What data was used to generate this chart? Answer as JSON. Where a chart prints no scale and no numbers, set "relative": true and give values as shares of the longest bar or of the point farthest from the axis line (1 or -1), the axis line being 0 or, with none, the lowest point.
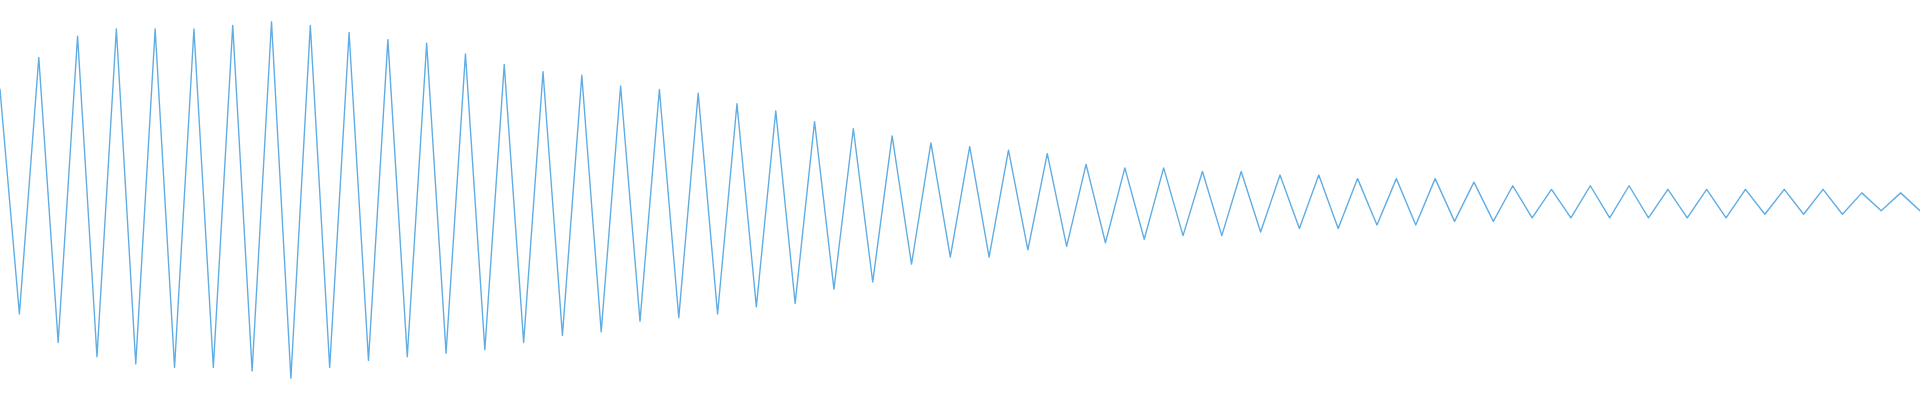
{
  "chart_data": {
    "type": "line",
    "relative": true,
    "color": "#5fade4",
    "categories": [
      null,
      null,
      null,
      null,
      null,
      null,
      null,
      null,
      null,
      null,
      null,
      null,
      null,
      null,
      null,
      null,
      null,
      null,
      null,
      null,
      null,
      null,
      null,
      null,
      null,
      null,
      null,
      null,
      null,
      null,
      null,
      null,
      null,
      null,
      null,
      null,
      null,
      null,
      null,
      null,
      null,
      null,
      null,
      null,
      null,
      null,
      null,
      null,
      null,
      null,
      null,
      null,
      null,
      null,
      null,
      null,
      null,
      null,
      null,
      null,
      null,
      null,
      null,
      null,
      null,
      null,
      null,
      null,
      null,
      null,
      null,
      null,
      null,
      null,
      null,
      null,
      null,
      null,
      null,
      null,
      null,
      null,
      null,
      null,
      null,
      null,
      null,
      null,
      null,
      null,
      null,
      null,
      null,
      null,
      null,
      null,
      null,
      null,
      null,
      null
    ],
    "values": [
      0.81,
      0.18,
      0.9,
      0.1,
      0.96,
      0.06,
      0.98,
      0.04,
      0.98,
      0.03,
      0.98,
      0.03,
      0.99,
      0.02,
      1.0,
      0.0,
      0.99,
      0.03,
      0.97,
      0.05,
      0.95,
      0.06,
      0.94,
      0.07,
      0.91,
      0.08,
      0.88,
      0.1,
      0.86,
      0.12,
      0.85,
      0.13,
      0.82,
      0.16,
      0.81,
      0.17,
      0.8,
      0.18,
      0.77,
      0.2,
      0.75,
      0.21,
      0.72,
      0.25,
      0.7,
      0.27,
      0.68,
      0.32,
      0.66,
      0.34,
      0.65,
      0.34,
      0.64,
      0.36,
      0.63,
      0.37,
      0.6,
      0.38,
      0.59,
      0.39,
      0.59,
      0.4,
      0.58,
      0.4,
      0.58,
      0.41,
      0.57,
      0.42,
      0.57,
      0.42,
      0.56,
      0.43,
      0.56,
      0.43,
      0.56,
      0.44,
      0.55,
      0.44,
      0.54,
      0.45,
      0.53,
      0.45,
      0.54,
      0.45,
      0.54,
      0.45,
      0.53,
      0.45,
      0.53,
      0.45,
      0.53,
      0.46,
      0.53,
      0.46,
      0.53,
      0.46,
      0.52,
      0.47,
      0.52,
      0.47
    ],
    "legend": false
  }
}
